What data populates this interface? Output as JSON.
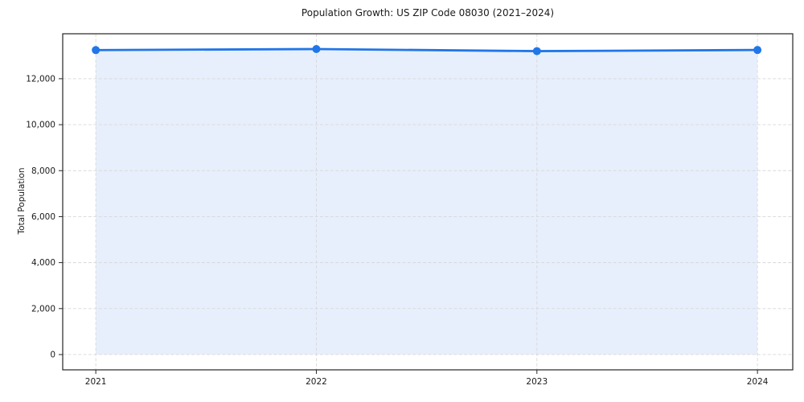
{
  "chart_data": {
    "type": "line",
    "title": "Population Growth: US ZIP Code 08030 (2021–2024)",
    "xlabel": "",
    "ylabel": "Total Population",
    "x": [
      2021,
      2022,
      2023,
      2024
    ],
    "series": [
      {
        "name": "Total Population",
        "values": [
          13245,
          13290,
          13200,
          13250
        ]
      }
    ],
    "area_fill": true,
    "fill_baseline": 0,
    "marker": "circle",
    "xticks": [
      2021,
      2022,
      2023,
      2024
    ],
    "xtick_labels": [
      "2021",
      "2022",
      "2023",
      "2024"
    ],
    "yticks": [
      0,
      2000,
      4000,
      6000,
      8000,
      10000,
      12000
    ],
    "ytick_labels": [
      "0",
      "2,000",
      "4,000",
      "6,000",
      "8,000",
      "10,000",
      "12,000"
    ],
    "xlim": [
      2020.85,
      2024.16
    ],
    "ylim": [
      -665,
      13955
    ],
    "grid": true,
    "grid_style": "dashed",
    "legend": "none",
    "colors": {
      "line": "#2176e8",
      "marker": "#2176e8",
      "fill": "#e8effc",
      "grid": "#d8d8d8",
      "axis": "#262626",
      "text": "#1a1a1a"
    }
  }
}
